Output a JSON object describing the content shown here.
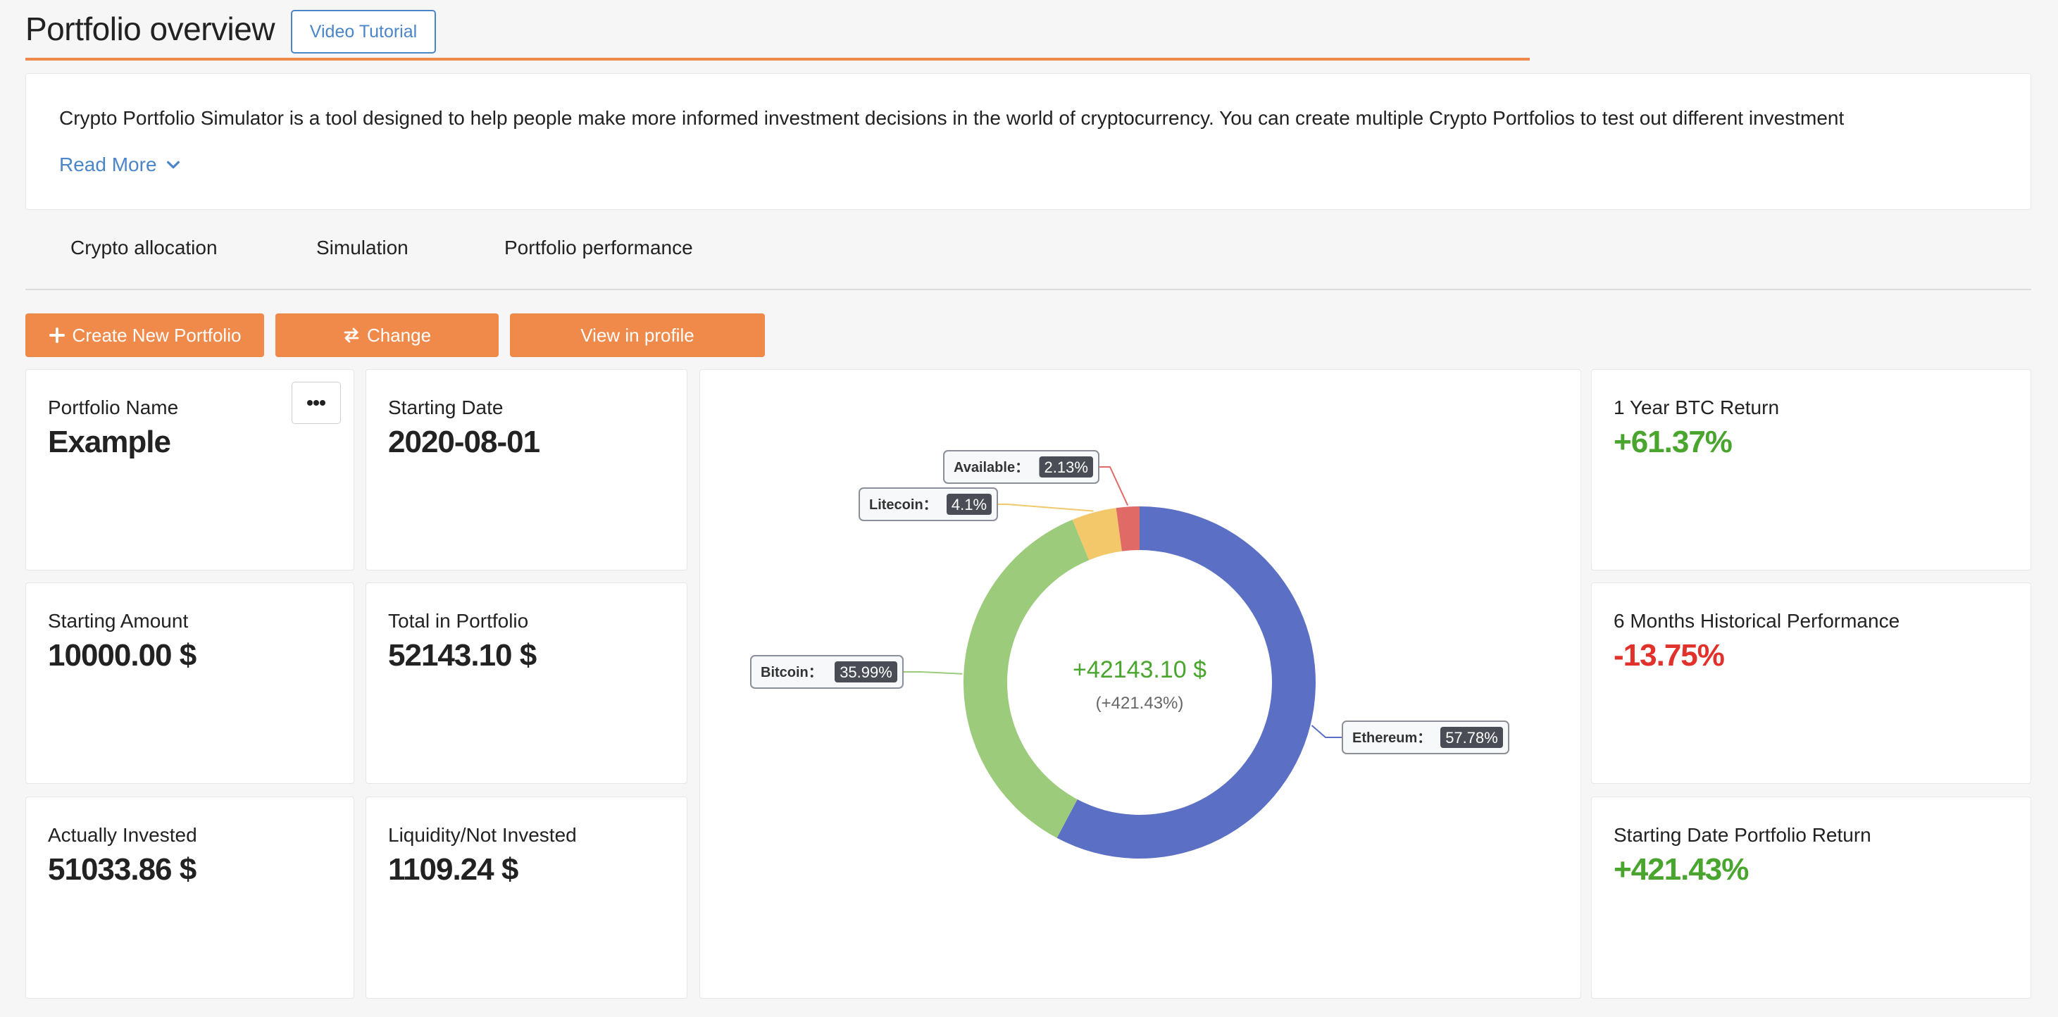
{
  "header": {
    "title": "Portfolio overview",
    "video_button": "Video Tutorial"
  },
  "intro": {
    "text": "Crypto Portfolio Simulator is a tool designed to help people make more informed investment decisions in the world of cryptocurrency. You can create multiple Crypto Portfolios to test out different investment",
    "read_more": "Read More"
  },
  "tabs": [
    "Crypto allocation",
    "Simulation",
    "Portfolio performance"
  ],
  "actions": {
    "create": "Create New Portfolio",
    "change": "Change",
    "view_profile": "View in profile"
  },
  "cards": {
    "portfolio_name": {
      "label": "Portfolio Name",
      "value": "Example"
    },
    "starting_date": {
      "label": "Starting Date",
      "value": "2020-08-01"
    },
    "starting_amount": {
      "label": "Starting Amount",
      "value": "10000.00 $"
    },
    "total_in_portfolio": {
      "label": "Total in Portfolio",
      "value": "52143.10 $"
    },
    "actually_invested": {
      "label": "Actually Invested",
      "value": "51033.86 $"
    },
    "liquidity": {
      "label": "Liquidity/Not Invested",
      "value": "1109.24 $"
    },
    "btc_return": {
      "label": "1 Year BTC Return",
      "value": "+61.37%"
    },
    "six_months": {
      "label": "6 Months Historical Performance",
      "value": "-13.75%"
    },
    "start_return": {
      "label": "Starting Date Portfolio Return",
      "value": "+421.43%"
    }
  },
  "colors": {
    "accent": "#f08a4b",
    "link": "#4a86c8",
    "positive": "#4aa52e",
    "negative": "#e0322b"
  },
  "chart_data": {
    "type": "pie",
    "donut": true,
    "center_value": "+42143.10 $",
    "center_sub": "(+421.43%)",
    "slices": [
      {
        "name": "Ethereum",
        "label": "Ethereum：",
        "value": 57.78,
        "value_label": "57.78%",
        "color": "#5b70c4"
      },
      {
        "name": "Bitcoin",
        "label": "Bitcoin：",
        "value": 35.99,
        "value_label": "35.99%",
        "color": "#9ccb7c"
      },
      {
        "name": "Litecoin",
        "label": "Litecoin：",
        "value": 4.1,
        "value_label": "4.1%",
        "color": "#f2c86a"
      },
      {
        "name": "Available",
        "label": "Available：",
        "value": 2.13,
        "value_label": "2.13%",
        "color": "#e06b66"
      }
    ]
  }
}
